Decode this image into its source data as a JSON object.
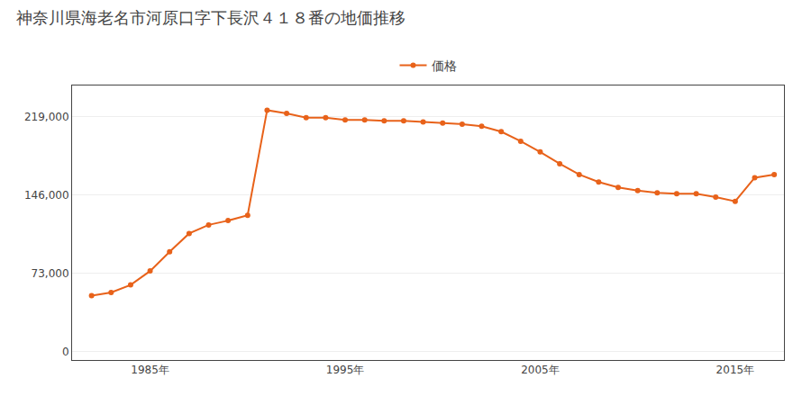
{
  "chart_data": {
    "type": "line",
    "title": "神奈川県海老名市河原口字下長沢４１８番の地価推移",
    "x": [
      1982,
      1983,
      1984,
      1985,
      1986,
      1987,
      1988,
      1989,
      1990,
      1991,
      1992,
      1993,
      1994,
      1995,
      1996,
      1997,
      1998,
      1999,
      2000,
      2001,
      2002,
      2003,
      2004,
      2005,
      2006,
      2007,
      2008,
      2009,
      2010,
      2011,
      2012,
      2013,
      2014,
      2015,
      2016,
      2017
    ],
    "series": [
      {
        "name": "価格",
        "color": "#E8621A",
        "marker": "circle",
        "values": [
          52000,
          55000,
          62000,
          75000,
          93000,
          110000,
          118000,
          122000,
          127000,
          225000,
          222000,
          218000,
          218000,
          216000,
          216000,
          215000,
          215000,
          214000,
          213000,
          212000,
          210000,
          205000,
          196000,
          186000,
          175000,
          165000,
          158000,
          153000,
          150000,
          148000,
          147000,
          147000,
          144000,
          140000,
          162000,
          165000
        ]
      }
    ],
    "xlim": [
      1981.0,
      2017.5
    ],
    "xticks": [
      {
        "value": 1985,
        "label": "1985年"
      },
      {
        "value": 1995,
        "label": "1995年"
      },
      {
        "value": 2005,
        "label": "2005年"
      },
      {
        "value": 2015,
        "label": "2015年"
      }
    ],
    "ylim": [
      -8000,
      248000
    ],
    "yticks": [
      0,
      {
        "value": 73000,
        "label": "73,000"
      },
      {
        "value": 146000,
        "label": "146,000"
      },
      {
        "value": 219000,
        "label": "219,000"
      }
    ],
    "grid": "y",
    "legend": "top"
  }
}
